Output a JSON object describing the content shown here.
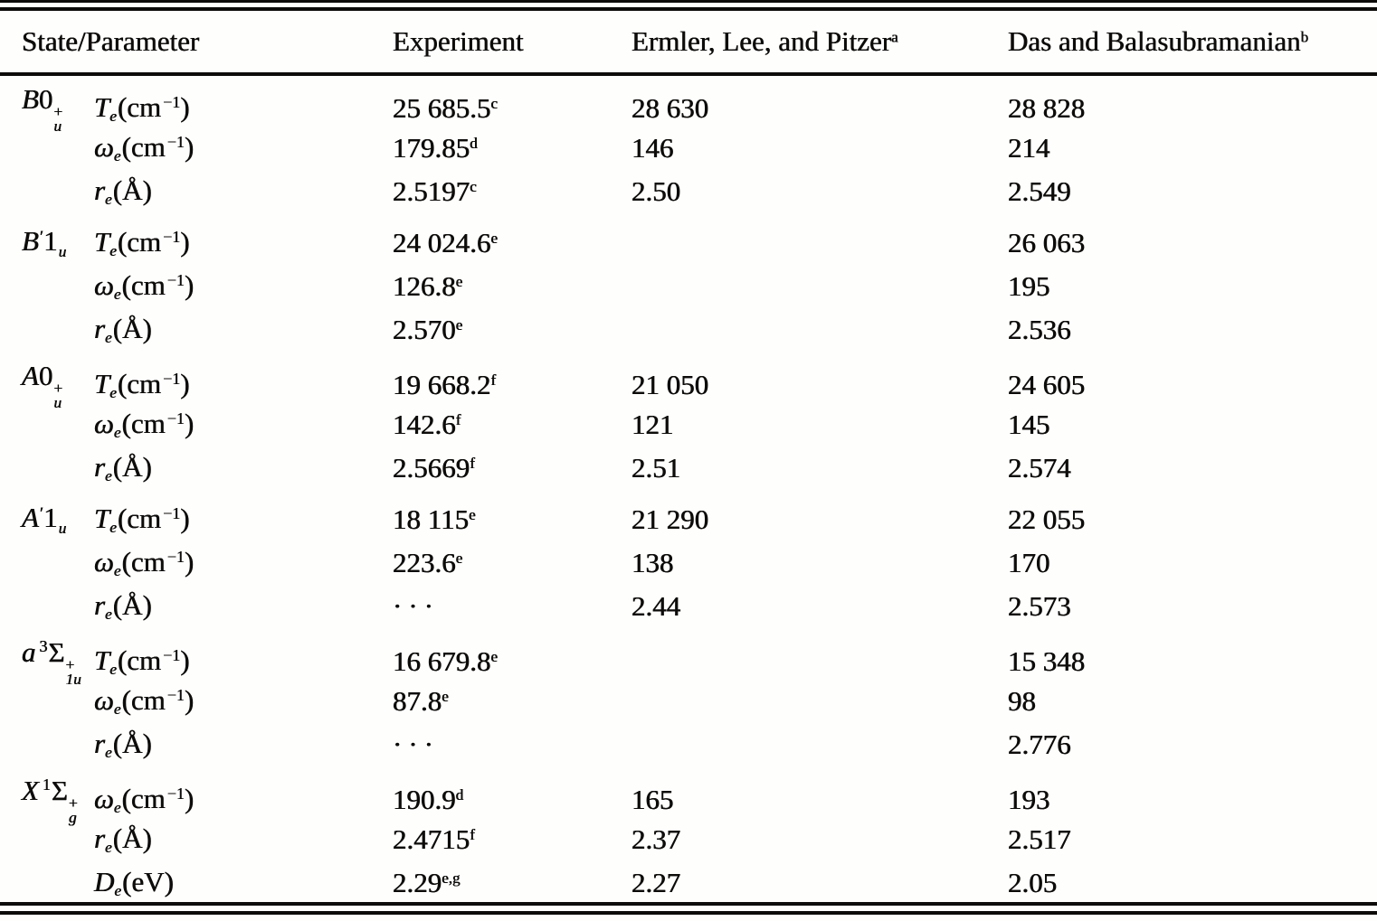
{
  "table": {
    "columns": [
      "State/Parameter",
      "Experiment",
      "Ermler, Lee, and Pitzer",
      "Das and Balasubramanian"
    ],
    "column_footnotes": [
      "",
      "",
      "a",
      "b"
    ],
    "blocks": [
      {
        "state": {
          "letter": "B",
          "prime": "",
          "pre_sup": "",
          "core": "0",
          "sub": "u",
          "sup": "+"
        },
        "rows": [
          {
            "param": {
              "sym": "T",
              "sub": "e",
              "unit": "cm",
              "exp": "−1"
            },
            "experiment": {
              "text": "25 685.5",
              "sup": "c"
            },
            "elp": {
              "text": "28 630",
              "sup": ""
            },
            "das": {
              "text": "28 828",
              "sup": ""
            }
          },
          {
            "param": {
              "sym": "ω",
              "sub": "e",
              "unit": "cm",
              "exp": "−1"
            },
            "experiment": {
              "text": "179.85",
              "sup": "d"
            },
            "elp": {
              "text": "146",
              "sup": ""
            },
            "das": {
              "text": "214",
              "sup": ""
            }
          },
          {
            "param": {
              "sym": "r",
              "sub": "e",
              "unit": "Å",
              "exp": ""
            },
            "experiment": {
              "text": "2.5197",
              "sup": "c"
            },
            "elp": {
              "text": "2.50",
              "sup": ""
            },
            "das": {
              "text": "2.549",
              "sup": ""
            }
          }
        ]
      },
      {
        "state": {
          "letter": "B",
          "prime": "′",
          "pre_sup": "",
          "core": "1",
          "sub": "u",
          "sup": ""
        },
        "rows": [
          {
            "param": {
              "sym": "T",
              "sub": "e",
              "unit": "cm",
              "exp": "−1"
            },
            "experiment": {
              "text": "24 024.6",
              "sup": "e"
            },
            "elp": {
              "text": "",
              "sup": ""
            },
            "das": {
              "text": "26 063",
              "sup": ""
            }
          },
          {
            "param": {
              "sym": "ω",
              "sub": "e",
              "unit": "cm",
              "exp": "−1"
            },
            "experiment": {
              "text": "126.8",
              "sup": "e"
            },
            "elp": {
              "text": "",
              "sup": ""
            },
            "das": {
              "text": "195",
              "sup": ""
            }
          },
          {
            "param": {
              "sym": "r",
              "sub": "e",
              "unit": "Å",
              "exp": ""
            },
            "experiment": {
              "text": "2.570",
              "sup": "e"
            },
            "elp": {
              "text": "",
              "sup": ""
            },
            "das": {
              "text": "2.536",
              "sup": ""
            }
          }
        ]
      },
      {
        "state": {
          "letter": "A",
          "prime": "",
          "pre_sup": "",
          "core": "0",
          "sub": "u",
          "sup": "+"
        },
        "rows": [
          {
            "param": {
              "sym": "T",
              "sub": "e",
              "unit": "cm",
              "exp": "−1"
            },
            "experiment": {
              "text": "19 668.2",
              "sup": "f"
            },
            "elp": {
              "text": "21 050",
              "sup": ""
            },
            "das": {
              "text": "24 605",
              "sup": ""
            }
          },
          {
            "param": {
              "sym": "ω",
              "sub": "e",
              "unit": "cm",
              "exp": "−1"
            },
            "experiment": {
              "text": "142.6",
              "sup": "f"
            },
            "elp": {
              "text": "121",
              "sup": ""
            },
            "das": {
              "text": "145",
              "sup": ""
            }
          },
          {
            "param": {
              "sym": "r",
              "sub": "e",
              "unit": "Å",
              "exp": ""
            },
            "experiment": {
              "text": "2.5669",
              "sup": "f"
            },
            "elp": {
              "text": "2.51",
              "sup": ""
            },
            "das": {
              "text": "2.574",
              "sup": ""
            }
          }
        ]
      },
      {
        "state": {
          "letter": "A",
          "prime": "′",
          "pre_sup": "",
          "core": "1",
          "sub": "u",
          "sup": ""
        },
        "rows": [
          {
            "param": {
              "sym": "T",
              "sub": "e",
              "unit": "cm",
              "exp": "−1"
            },
            "experiment": {
              "text": "18 115",
              "sup": "e"
            },
            "elp": {
              "text": "21 290",
              "sup": ""
            },
            "das": {
              "text": "22 055",
              "sup": ""
            }
          },
          {
            "param": {
              "sym": "ω",
              "sub": "e",
              "unit": "cm",
              "exp": "−1"
            },
            "experiment": {
              "text": "223.6",
              "sup": "e"
            },
            "elp": {
              "text": "138",
              "sup": ""
            },
            "das": {
              "text": "170",
              "sup": ""
            }
          },
          {
            "param": {
              "sym": "r",
              "sub": "e",
              "unit": "Å",
              "exp": ""
            },
            "experiment": {
              "text": "···",
              "sup": ""
            },
            "elp": {
              "text": "2.44",
              "sup": ""
            },
            "das": {
              "text": "2.573",
              "sup": ""
            }
          }
        ]
      },
      {
        "state": {
          "letter": "a",
          "prime": "",
          "pre_sup": "3",
          "core": "Σ",
          "sub": "1u",
          "sup": "+"
        },
        "rows": [
          {
            "param": {
              "sym": "T",
              "sub": "e",
              "unit": "cm",
              "exp": "−1"
            },
            "experiment": {
              "text": "16 679.8",
              "sup": "e"
            },
            "elp": {
              "text": "",
              "sup": ""
            },
            "das": {
              "text": "15 348",
              "sup": ""
            }
          },
          {
            "param": {
              "sym": "ω",
              "sub": "e",
              "unit": "cm",
              "exp": "−1"
            },
            "experiment": {
              "text": "87.8",
              "sup": "e"
            },
            "elp": {
              "text": "",
              "sup": ""
            },
            "das": {
              "text": "98",
              "sup": ""
            }
          },
          {
            "param": {
              "sym": "r",
              "sub": "e",
              "unit": "Å",
              "exp": ""
            },
            "experiment": {
              "text": "···",
              "sup": ""
            },
            "elp": {
              "text": "",
              "sup": ""
            },
            "das": {
              "text": "2.776",
              "sup": ""
            }
          }
        ]
      },
      {
        "state": {
          "letter": "X",
          "prime": "",
          "pre_sup": "1",
          "core": "Σ",
          "sub": "g",
          "sup": "+"
        },
        "rows": [
          {
            "param": {
              "sym": "ω",
              "sub": "e",
              "unit": "cm",
              "exp": "−1"
            },
            "experiment": {
              "text": "190.9",
              "sup": "d"
            },
            "elp": {
              "text": "165",
              "sup": ""
            },
            "das": {
              "text": "193",
              "sup": ""
            }
          },
          {
            "param": {
              "sym": "r",
              "sub": "e",
              "unit": "Å",
              "exp": ""
            },
            "experiment": {
              "text": "2.4715",
              "sup": "f"
            },
            "elp": {
              "text": "2.37",
              "sup": ""
            },
            "das": {
              "text": "2.517",
              "sup": ""
            }
          },
          {
            "param": {
              "sym": "D",
              "sub": "e",
              "unit": "eV",
              "exp": ""
            },
            "experiment": {
              "text": "2.29",
              "sup": "e,g"
            },
            "elp": {
              "text": "2.27",
              "sup": ""
            },
            "das": {
              "text": "2.05",
              "sup": ""
            }
          }
        ]
      }
    ]
  }
}
